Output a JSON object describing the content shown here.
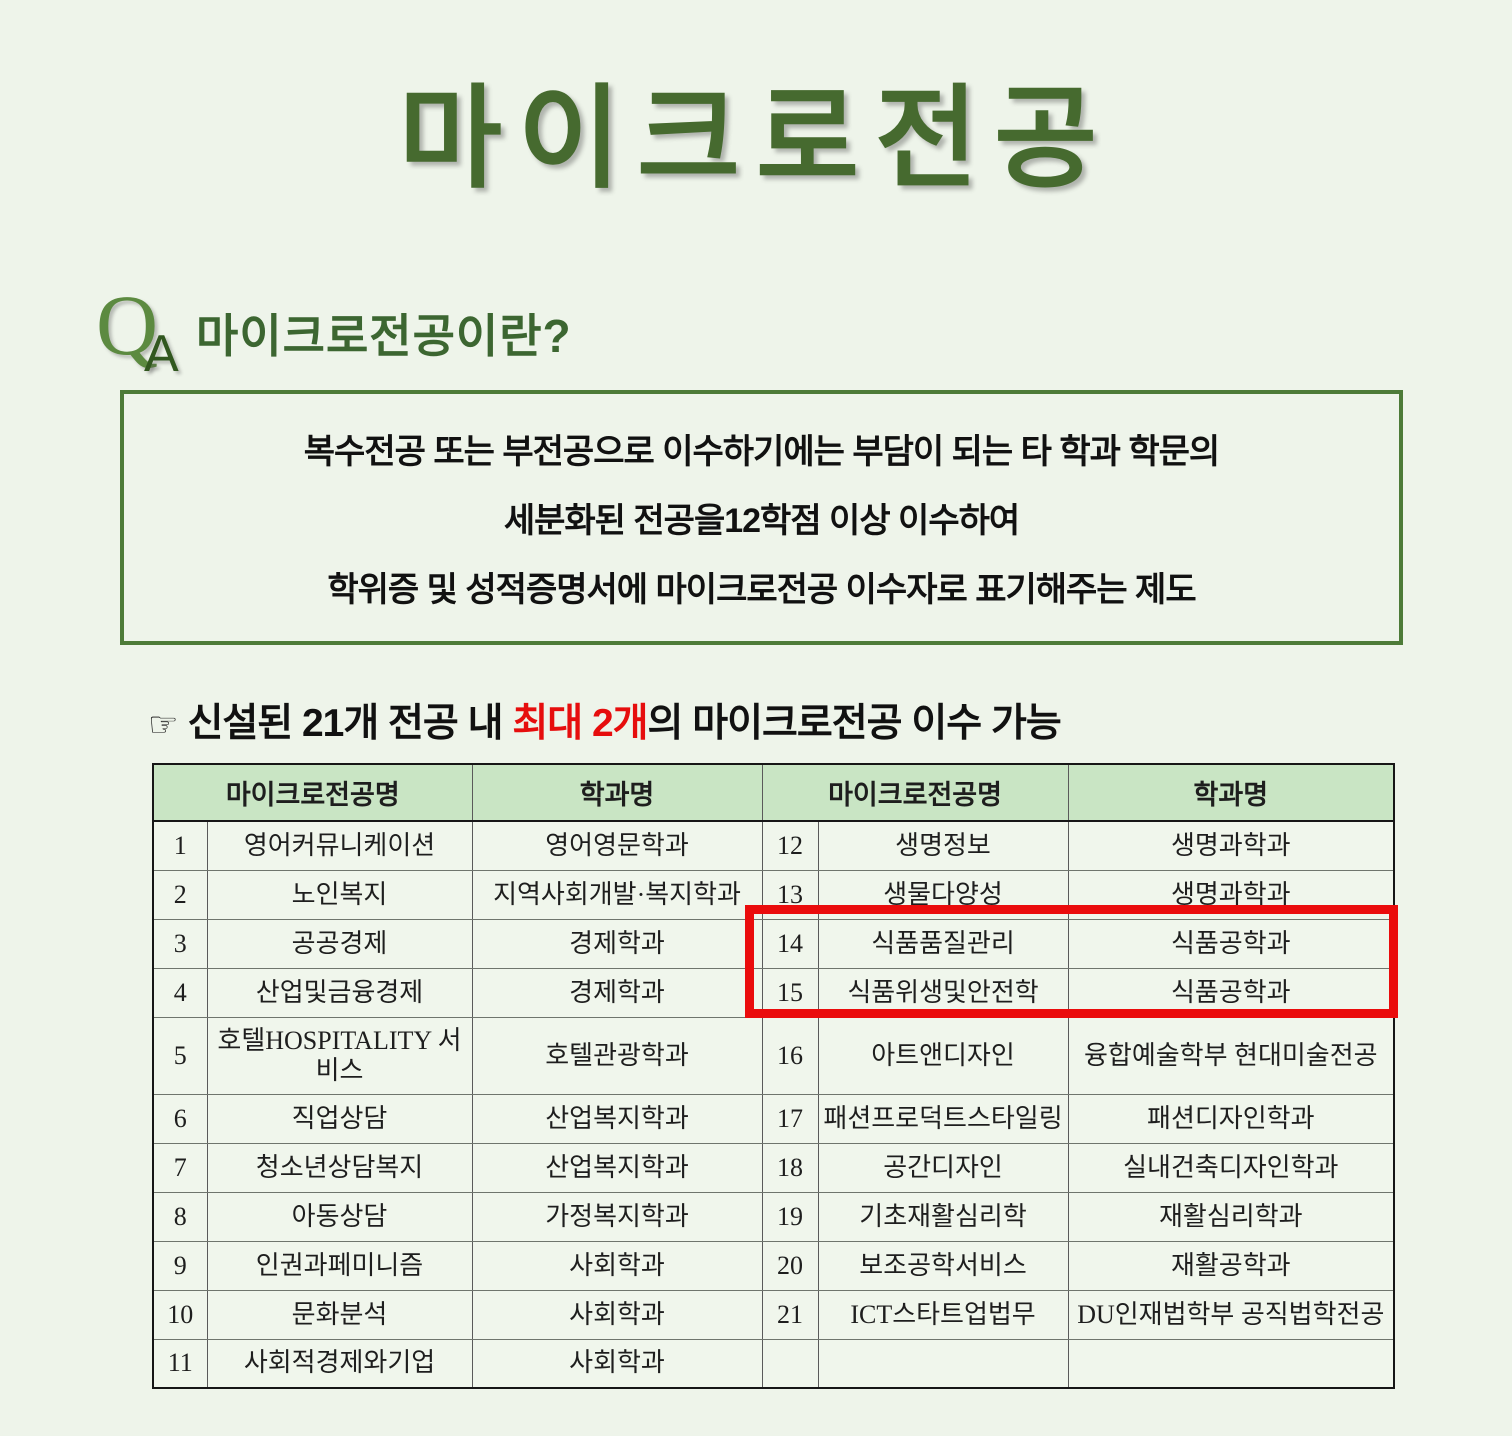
{
  "title": "마이크로전공",
  "qa": {
    "q": "Q",
    "a": "A",
    "heading": "마이크로전공이란?"
  },
  "definition_box": {
    "lines": [
      "복수전공 또는 부전공으로 이수하기에는 부담이 되는 타 학과 학문의",
      "세분화된 전공을12학점 이상 이수하여",
      "학위증 및 성적증명서에 마이크로전공 이수자로 표기해주는 제도"
    ]
  },
  "note": {
    "pointer": "☞",
    "prefix": "신설된 21개 전공 내 ",
    "highlight": "최대 2개",
    "suffix": "의 마이크로전공 이수 가능"
  },
  "table": {
    "headers": [
      "마이크로전공명",
      "학과명",
      "마이크로전공명",
      "학과명"
    ],
    "rows": [
      {
        "no_left": "1",
        "major_left": "영어커뮤니케이션",
        "dept_left": "영어영문학과",
        "no_right": "12",
        "major_right": "생명정보",
        "dept_right": "생명과학과"
      },
      {
        "no_left": "2",
        "major_left": "노인복지",
        "dept_left": "지역사회개발·복지학과",
        "no_right": "13",
        "major_right": "생물다양성",
        "dept_right": "생명과학과"
      },
      {
        "no_left": "3",
        "major_left": "공공경제",
        "dept_left": "경제학과",
        "no_right": "14",
        "major_right": "식품품질관리",
        "dept_right": "식품공학과"
      },
      {
        "no_left": "4",
        "major_left": "산업및금융경제",
        "dept_left": "경제학과",
        "no_right": "15",
        "major_right": "식품위생및안전학",
        "dept_right": "식품공학과"
      },
      {
        "no_left": "5",
        "major_left": "호텔HOSPITALITY 서비스",
        "dept_left": "호텔관광학과",
        "no_right": "16",
        "major_right": "아트앤디자인",
        "dept_right": "융합예술학부 현대미술전공"
      },
      {
        "no_left": "6",
        "major_left": "직업상담",
        "dept_left": "산업복지학과",
        "no_right": "17",
        "major_right": "패션프로덕트스타일링",
        "dept_right": "패션디자인학과"
      },
      {
        "no_left": "7",
        "major_left": "청소년상담복지",
        "dept_left": "산업복지학과",
        "no_right": "18",
        "major_right": "공간디자인",
        "dept_right": "실내건축디자인학과"
      },
      {
        "no_left": "8",
        "major_left": "아동상담",
        "dept_left": "가정복지학과",
        "no_right": "19",
        "major_right": "기초재활심리학",
        "dept_right": "재활심리학과"
      },
      {
        "no_left": "9",
        "major_left": "인권과페미니즘",
        "dept_left": "사회학과",
        "no_right": "20",
        "major_right": "보조공학서비스",
        "dept_right": "재활공학과"
      },
      {
        "no_left": "10",
        "major_left": "문화분석",
        "dept_left": "사회학과",
        "no_right": "21",
        "major_right": "ICT스타트업법무",
        "dept_right": "DU인재법학부 공직법학전공"
      },
      {
        "no_left": "11",
        "major_left": "사회적경제와기업",
        "dept_left": "사회학과",
        "no_right": "",
        "major_right": "",
        "dept_right": ""
      }
    ],
    "highlighted_row_numbers": [
      "14",
      "15"
    ]
  },
  "colors": {
    "page_bg": "#eef4ea",
    "title_green": "#466a2f",
    "heading_green": "#3c6631",
    "box_border_green": "#4d7b38",
    "table_header_bg": "#c9e5c4",
    "highlight_red": "#ea0c0c",
    "note_red": "#e60d0d"
  }
}
